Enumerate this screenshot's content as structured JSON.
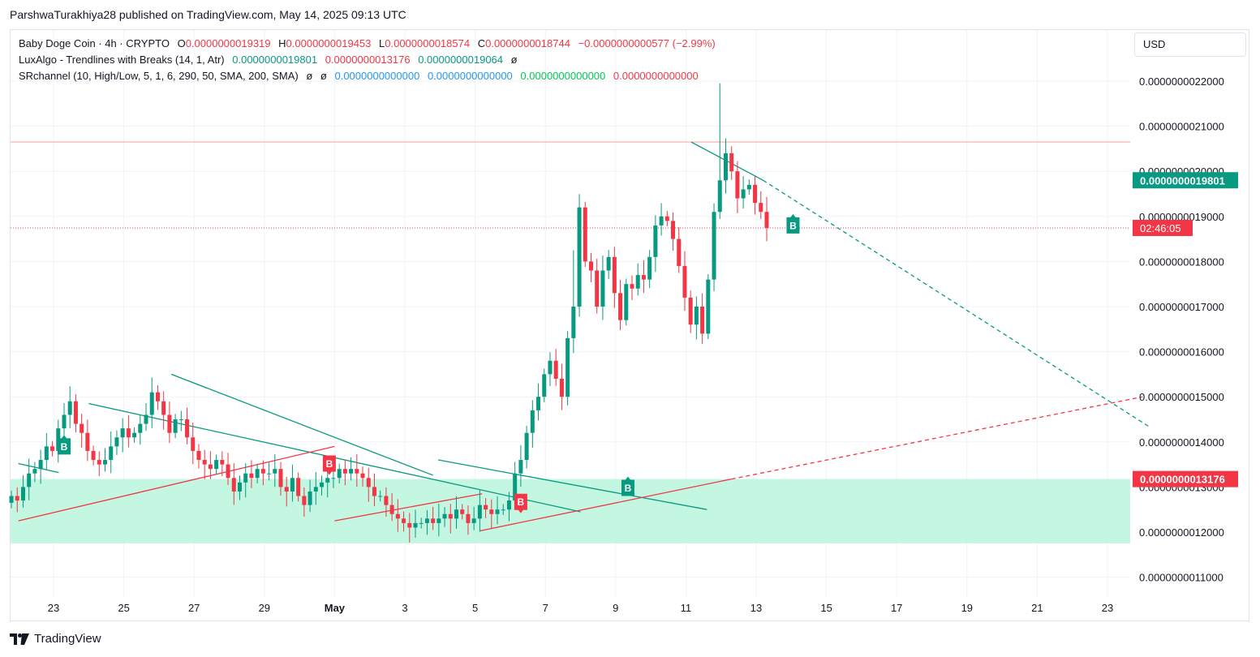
{
  "publisher_line": "ParshwaTurakhiya28 published on TradingView.com, May 14, 2025 09:13 UTC",
  "legend": {
    "symbol": "Baby Doge Coin · 4h · CRYPTO",
    "o_label": "O",
    "o_value": "0.0000000019319",
    "h_label": "H",
    "h_value": "0.0000000019453",
    "l_label": "L",
    "l_value": "0.0000000018574",
    "c_label": "C",
    "c_value": "0.0000000018744",
    "change": "−0.0000000000577 (−2.99%)",
    "lux_name": "LuxAlgo - Trendlines with Breaks (14, 1, Atr)",
    "lux_v1": "0.0000000019801",
    "lux_v2": "0.0000000013176",
    "lux_v3": "0.0000000019064",
    "lux_na": "ø",
    "sr_name": "SRchannel (10, High/Low, 5, 1, 6, 290, 50, SMA, 200, SMA)",
    "sr_na1": "ø",
    "sr_na2": "ø",
    "sr_v1": "0.0000000000000",
    "sr_v2": "0.0000000000000",
    "sr_v3": "0.0000000000000",
    "sr_v4": "0.0000000000000"
  },
  "currency": "USD",
  "footer_brand": "TradingView",
  "colors": {
    "up": "#089981",
    "down": "#f23645",
    "zone": "#b9f6dc",
    "resistance": "#f7a8a8"
  },
  "chart_data": {
    "type": "candlestick",
    "price_axis_labels": [
      "0.0000000022000",
      "0.0000000021000",
      "0.0000000020000",
      "0.0000000019000",
      "0.0000000018000",
      "0.0000000017000",
      "0.0000000016000",
      "0.0000000015000",
      "0.0000000014000",
      "0.0000000013000",
      "0.0000000012000",
      "0.0000000011000"
    ],
    "y_ticks": [
      22,
      21,
      20,
      19,
      18,
      17,
      16,
      15,
      14,
      13,
      12,
      11
    ],
    "y_unit": 1e-10,
    "x_ticks": [
      {
        "label": "23",
        "day": 0
      },
      {
        "label": "25",
        "day": 2
      },
      {
        "label": "27",
        "day": 4
      },
      {
        "label": "29",
        "day": 6
      },
      {
        "label": "May",
        "day": 8
      },
      {
        "label": "3",
        "day": 10
      },
      {
        "label": "5",
        "day": 12
      },
      {
        "label": "7",
        "day": 14
      },
      {
        "label": "9",
        "day": 16
      },
      {
        "label": "11",
        "day": 18
      },
      {
        "label": "13",
        "day": 20
      },
      {
        "label": "15",
        "day": 22
      },
      {
        "label": "17",
        "day": 24
      },
      {
        "label": "19",
        "day": 26
      },
      {
        "label": "21",
        "day": 28
      },
      {
        "label": "23",
        "day": 30
      }
    ],
    "trendline_value_label": "0.0000000019801",
    "support_value_label": "0.0000000013176",
    "countdown_label": "02:46:05",
    "current_price": 18.744,
    "resistance_level": 20.65,
    "support_zone": [
      11.75,
      13.176
    ],
    "break_label": "B",
    "closes": [
      12.8,
      12.7,
      13.0,
      13.3,
      13.4,
      13.6,
      13.9,
      13.8,
      14.3,
      14.6,
      14.9,
      14.4,
      14.2,
      13.8,
      13.6,
      13.5,
      13.6,
      13.9,
      14.1,
      14.3,
      14.1,
      14.2,
      14.4,
      14.6,
      15.1,
      14.9,
      14.6,
      14.2,
      14.5,
      14.5,
      14.1,
      13.8,
      13.6,
      13.5,
      13.4,
      13.6,
      13.5,
      13.2,
      12.9,
      13.1,
      13.3,
      13.2,
      13.4,
      13.3,
      13.3,
      13.4,
      13.0,
      12.9,
      13.2,
      12.8,
      12.6,
      12.9,
      13.0,
      13.1,
      13.2,
      13.2,
      13.4,
      13.3,
      13.4,
      13.3,
      13.2,
      13.0,
      12.8,
      12.8,
      12.6,
      12.4,
      12.3,
      12.2,
      12.1,
      12.2,
      12.2,
      12.3,
      12.2,
      12.3,
      12.4,
      12.3,
      12.5,
      12.4,
      12.2,
      12.3,
      12.6,
      12.5,
      12.4,
      12.5,
      12.5,
      12.7,
      13.3,
      13.6,
      14.2,
      14.7,
      15.0,
      15.5,
      15.8,
      15.4,
      15.0,
      16.3,
      17.0,
      19.2,
      18.0,
      17.8,
      17.0,
      17.8,
      18.1,
      17.3,
      16.7,
      17.5,
      17.4,
      17.7,
      17.6,
      18.1,
      18.8,
      19.0,
      18.9,
      18.5,
      17.9,
      17.2,
      16.6,
      17.0,
      16.4,
      17.6,
      19.1,
      19.8,
      20.4,
      20.0,
      19.4,
      19.6,
      19.7,
      19.3,
      19.1,
      18.744
    ],
    "trendlines": [
      {
        "kind": "resistance",
        "points": [
          [
            1,
            14.85
          ],
          [
            15,
            12.45
          ]
        ],
        "style": "solid"
      },
      {
        "kind": "resistance",
        "points": [
          [
            -1,
            13.52
          ],
          [
            0.15,
            13.32
          ]
        ],
        "style": "solid"
      },
      {
        "kind": "resistance",
        "points": [
          [
            3.35,
            15.5
          ],
          [
            10.8,
            13.26
          ]
        ],
        "style": "solid"
      },
      {
        "kind": "resistance",
        "points": [
          [
            10.95,
            13.6
          ],
          [
            18.6,
            12.5
          ]
        ],
        "style": "solid"
      },
      {
        "kind": "resistance",
        "points": [
          [
            18.15,
            20.65
          ],
          [
            20.2,
            19.8
          ]
        ],
        "style": "solid"
      },
      {
        "kind": "resistance",
        "points": [
          [
            20.2,
            19.8
          ],
          [
            31.2,
            14.33
          ]
        ],
        "style": "dashed"
      },
      {
        "kind": "support",
        "points": [
          [
            -1,
            12.25
          ],
          [
            8.0,
            13.9
          ]
        ],
        "style": "solid"
      },
      {
        "kind": "support",
        "points": [
          [
            8.0,
            12.25
          ],
          [
            12.2,
            12.85
          ]
        ],
        "style": "solid"
      },
      {
        "kind": "support",
        "points": [
          [
            12.15,
            12.03
          ],
          [
            19.3,
            13.176
          ]
        ],
        "style": "solid"
      },
      {
        "kind": "support",
        "points": [
          [
            19.3,
            13.176
          ],
          [
            31.0,
            15.0
          ]
        ],
        "style": "dashed"
      }
    ],
    "break_markers": [
      {
        "day": 0.3,
        "price": 13.9,
        "kind": "up"
      },
      {
        "day": 7.85,
        "price": 13.52,
        "kind": "down"
      },
      {
        "day": 13.3,
        "price": 12.67,
        "kind": "down"
      },
      {
        "day": 16.35,
        "price": 12.98,
        "kind": "up"
      },
      {
        "day": 21.05,
        "price": 18.8,
        "kind": "up"
      }
    ]
  }
}
